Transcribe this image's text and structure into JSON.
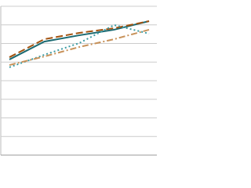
{
  "chart_data": {
    "type": "line",
    "categories": [
      null,
      null,
      null,
      null,
      null
    ],
    "series": [
      {
        "color": "#1b6a72",
        "dash": "solid",
        "values": [
          51.4,
          61,
          64.4,
          67.4,
          72
        ]
      },
      {
        "color": "#a3520f",
        "dash": "dashed",
        "values": [
          52.6,
          62.3,
          65.7,
          68.2,
          72
        ]
      },
      {
        "color": "#3d9ca3",
        "dash": "dotted",
        "values": [
          47.2,
          53.9,
          60.2,
          69.9,
          65.3
        ]
      },
      {
        "color": "#c8925a",
        "dash": "dashdot",
        "values": [
          48.4,
          53,
          58.1,
          62.3,
          67.4
        ]
      }
    ],
    "ylim": [
      0,
      80
    ],
    "yticks": [
      0,
      10,
      20,
      30,
      40,
      50,
      60,
      70,
      80
    ],
    "grid": true
  }
}
